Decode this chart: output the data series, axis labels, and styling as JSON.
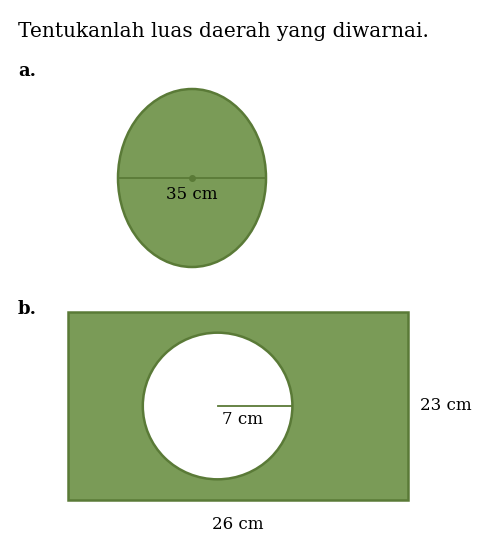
{
  "title": "Tentukanlah luas daerah yang diwarnai.",
  "title_fontsize": 14.5,
  "bg_color": "#ffffff",
  "green_fill": "#7a9b57",
  "green_edge": "#5a7a37",
  "label_a": "a.",
  "label_b": "b.",
  "label_fontsize": 13,
  "text_fontsize": 12,
  "circle_a_label": "35 cm",
  "circle_b_label": "7 cm",
  "rect_label_width": "26 cm",
  "rect_label_height": "23 cm",
  "dot_size": 4,
  "edge_linewidth": 1.8
}
